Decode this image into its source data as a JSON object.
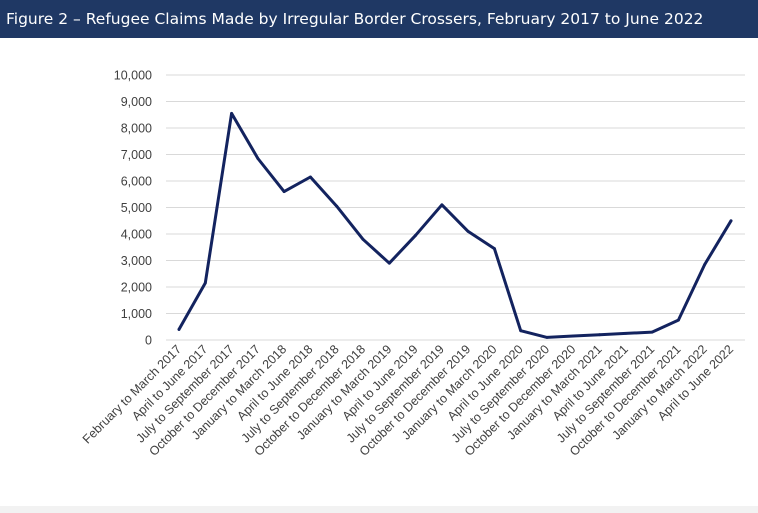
{
  "figure": {
    "title": "Figure 2 – Refugee Claims Made by Irregular Border Crossers, February 2017 to June 2022"
  },
  "colors": {
    "header_bg": "#1f3864",
    "line": "#13235f",
    "grid": "#d9d9d9",
    "axis_text": "#404040"
  },
  "chart_data": {
    "type": "line",
    "title": "Figure 2 – Refugee Claims Made by Irregular Border Crossers, February 2017 to June 2022",
    "xlabel": "",
    "ylabel": "",
    "ylim": [
      0,
      10000
    ],
    "yticks": [
      0,
      1000,
      2000,
      3000,
      4000,
      5000,
      6000,
      7000,
      8000,
      9000,
      10000
    ],
    "ytick_labels": [
      "0",
      "1,000",
      "2,000",
      "3,000",
      "4,000",
      "5,000",
      "6,000",
      "7,000",
      "8,000",
      "9,000",
      "10,000"
    ],
    "grid": true,
    "legend": "none",
    "categories": [
      "February to March 2017",
      "April to June 2017",
      "July to September 2017",
      "October to December 2017",
      "January to March 2018",
      "April to June 2018",
      "July to September 2018",
      "October to December 2018",
      "January to March 2019",
      "April to June 2019",
      "July to September 2019",
      "October to December 2019",
      "January to March 2020",
      "April to June 2020",
      "July to September 2020",
      "October to December 2020",
      "January to March 2021",
      "April to June 2021",
      "July to September 2021",
      "October to December 2021",
      "January to March 2022",
      "April to June 2022"
    ],
    "series": [
      {
        "name": "Refugee claims",
        "values": [
          400,
          2150,
          8550,
          6850,
          5600,
          6150,
          5050,
          3800,
          2900,
          3950,
          5100,
          4100,
          3450,
          350,
          100,
          150,
          200,
          250,
          300,
          750,
          2850,
          4500
        ]
      }
    ]
  }
}
